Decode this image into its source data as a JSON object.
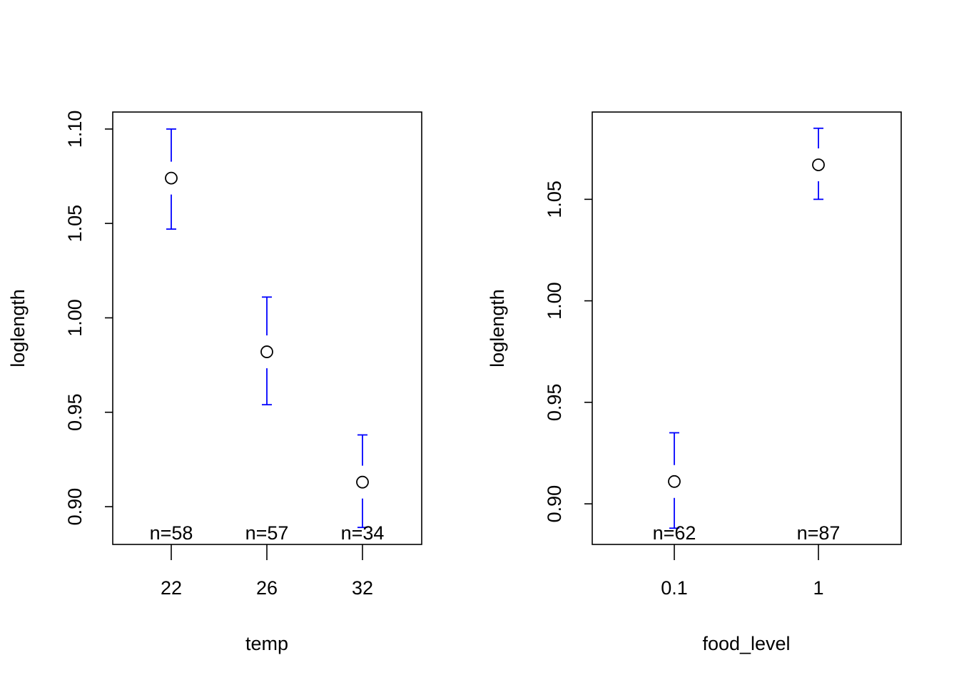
{
  "colors": {
    "error_bar": "#0000ff",
    "point": "#000000",
    "axis": "#000000",
    "background": "#ffffff"
  },
  "chart_data": [
    {
      "type": "scatter",
      "subtype": "point-with-error-bars",
      "title": "",
      "xlabel": "temp",
      "ylabel": "loglength",
      "categories": [
        "22",
        "26",
        "32"
      ],
      "values": [
        1.074,
        0.982,
        0.913
      ],
      "lower": [
        1.047,
        0.954,
        0.889
      ],
      "upper": [
        1.1,
        1.011,
        0.938
      ],
      "n_labels": [
        "n=58",
        "n=57",
        "n=34"
      ],
      "ylim": [
        0.88,
        1.109
      ],
      "yticks": [
        0.9,
        0.95,
        1.0,
        1.05,
        1.1
      ],
      "ytick_labels": [
        "0.90",
        "0.95",
        "1.00",
        "1.05",
        "1.10"
      ],
      "grid": false,
      "legend": "none"
    },
    {
      "type": "scatter",
      "subtype": "point-with-error-bars",
      "title": "",
      "xlabel": "food_level",
      "ylabel": "loglength",
      "categories": [
        "0.1",
        "1"
      ],
      "values": [
        0.911,
        1.067
      ],
      "lower": [
        0.888,
        1.05
      ],
      "upper": [
        0.935,
        1.085
      ],
      "n_labels": [
        "n=62",
        "n=87"
      ],
      "ylim": [
        0.88,
        1.093
      ],
      "yticks": [
        0.9,
        0.95,
        1.0,
        1.05
      ],
      "ytick_labels": [
        "0.90",
        "0.95",
        "1.00",
        "1.05"
      ],
      "grid": false,
      "legend": "none"
    }
  ]
}
